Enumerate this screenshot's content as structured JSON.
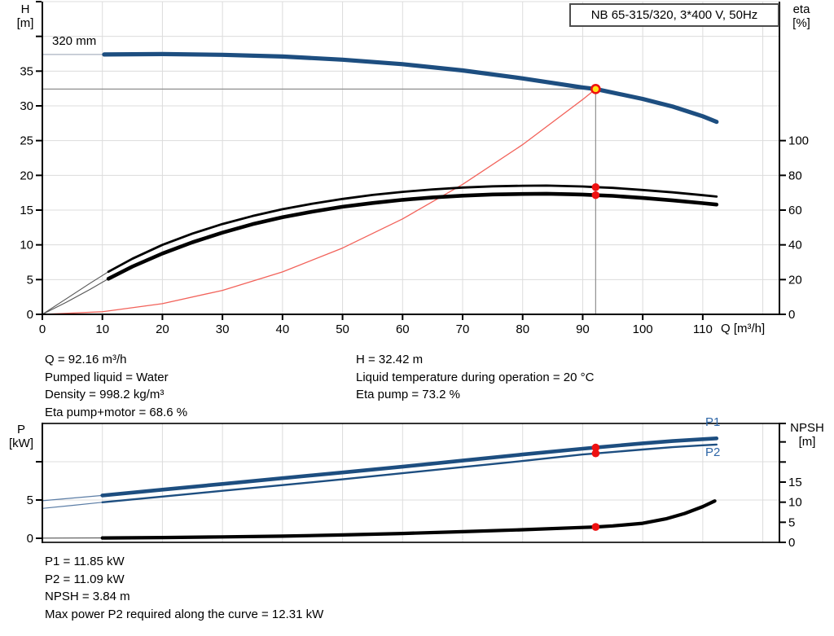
{
  "colors": {
    "curve_blue": "#1d4e80",
    "label_blue": "#2e66a7",
    "red": "#ee1111",
    "yellow": "#ffe215",
    "grid": "#dcdcdc",
    "crosshair": "#8f8f8f",
    "axis": "#000000",
    "system_red": "#f2625a",
    "lead_gray": "#555555",
    "lead_blue": "#5b7da6",
    "head_extension_gray": "#aab3c0"
  },
  "top_chart": {
    "title_box": "NB 65-315/320, 3*400 V, 50Hz",
    "y_left_title": "H",
    "y_left_unit": "[m]",
    "y_right_title": "eta",
    "y_right_unit": "[%]",
    "x_unit": "Q [m³/h]",
    "impeller": "320 mm"
  },
  "bottom_chart": {
    "y_left_title": "P",
    "y_left_unit": "[kW]",
    "y_right_title": "NPSH",
    "y_right_unit": "[m]",
    "p1_label": "P1",
    "p2_label": "P2"
  },
  "info_top_left": [
    "Q = 92.16 m³/h",
    "Pumped liquid = Water",
    "Density = 998.2 kg/m³",
    "Eta pump+motor = 68.6 %"
  ],
  "info_top_right": [
    "H = 32.42 m",
    "Liquid temperature during operation = 20 °C",
    "Eta pump = 73.2 %"
  ],
  "info_bottom": [
    "P1 = 11.85 kW",
    "P2 = 11.09 kW",
    "NPSH = 3.84 m",
    "Max power P2 required along the curve = 12.31 kW"
  ],
  "chart_data": [
    {
      "type": "line",
      "title": "NB 65-315/320, 3*400 V, 50Hz",
      "xlabel": "Q [m³/h]",
      "ylabel_left": "H [m]",
      "ylabel_right": "eta [%]",
      "xlim": [
        0,
        122.8
      ],
      "ylim_left": [
        0,
        45
      ],
      "ylim_right": [
        0,
        180
      ],
      "grid": true,
      "annotation": "320 mm",
      "x_ticks": [
        0,
        10,
        20,
        30,
        40,
        50,
        60,
        70,
        80,
        90,
        100,
        110
      ],
      "y_ticks_left": [
        0,
        5,
        10,
        15,
        20,
        25,
        30,
        35
      ],
      "y_tick_marks_left": [
        0,
        5,
        10,
        15,
        20,
        25,
        30,
        35,
        40,
        45
      ],
      "y_ticks_right": [
        0,
        20,
        40,
        60,
        80,
        100
      ],
      "grid_x": [
        10,
        20,
        30,
        40,
        50,
        60,
        70,
        80,
        90,
        100,
        110,
        120
      ],
      "grid_y_left": [
        5,
        10,
        15,
        20,
        25,
        30,
        35,
        40,
        45
      ],
      "duty_point": {
        "q": 92.16,
        "h": 32.42,
        "eta_pump": 73.2,
        "eta_pump_motor": 68.6
      },
      "markers": [
        {
          "q": 92.16,
          "v": 73.2,
          "axis": "eta",
          "style": "red"
        },
        {
          "q": 92.16,
          "v": 68.6,
          "axis": "eta",
          "style": "red"
        },
        {
          "q": 92.16,
          "v": 32.42,
          "axis": "h",
          "style": "duty"
        }
      ],
      "series": [
        {
          "name": "head-extension",
          "axis": "h",
          "color": "#aab3c0",
          "width": 1.3,
          "points": [
            [
              0,
              37.4
            ],
            [
              10.3,
              37.4
            ]
          ]
        },
        {
          "name": "system-curve",
          "axis": "h",
          "color": "#f2625a",
          "width": 1.3,
          "points": [
            [
              0,
              0
            ],
            [
              10,
              0.38
            ],
            [
              20,
              1.53
            ],
            [
              30,
              3.44
            ],
            [
              40,
              6.11
            ],
            [
              50,
              9.54
            ],
            [
              60,
              13.74
            ],
            [
              70,
              18.7
            ],
            [
              80,
              24.42
            ],
            [
              90,
              30.91
            ],
            [
              92.16,
              32.42
            ]
          ]
        },
        {
          "name": "eta-pump",
          "axis": "eta",
          "color": "#000000",
          "width": 2.8,
          "lead_color": "#555555",
          "lead_width": 1.1,
          "lead_points": [
            [
              0,
              0
            ],
            [
              4,
              9
            ],
            [
              8,
              18
            ],
            [
              11,
              24.5
            ]
          ],
          "points": [
            [
              11,
              24.5
            ],
            [
              15,
              32
            ],
            [
              20,
              40
            ],
            [
              25,
              46.5
            ],
            [
              30,
              52
            ],
            [
              35,
              56.6
            ],
            [
              40,
              60.5
            ],
            [
              45,
              63.7
            ],
            [
              50,
              66.4
            ],
            [
              55,
              68.7
            ],
            [
              60,
              70.5
            ],
            [
              65,
              71.9
            ],
            [
              70,
              73.0
            ],
            [
              75,
              73.7
            ],
            [
              80,
              74.0
            ],
            [
              84,
              74.1
            ],
            [
              88,
              73.8
            ],
            [
              90,
              73.6
            ],
            [
              92.16,
              73.2
            ],
            [
              95,
              72.8
            ],
            [
              100,
              71.6
            ],
            [
              105,
              70.2
            ],
            [
              110,
              68.6
            ],
            [
              112.3,
              67.8
            ]
          ]
        },
        {
          "name": "eta-pump-motor",
          "axis": "eta",
          "color": "#000000",
          "width": 4.6,
          "lead_color": "#555555",
          "lead_width": 1.1,
          "lead_points": [
            [
              0,
              0
            ],
            [
              4,
              7
            ],
            [
              8,
              14.5
            ],
            [
              11,
              20.5
            ]
          ],
          "points": [
            [
              11,
              20.5
            ],
            [
              15,
              27.5
            ],
            [
              20,
              35
            ],
            [
              25,
              41.5
            ],
            [
              30,
              47
            ],
            [
              35,
              51.9
            ],
            [
              40,
              55.9
            ],
            [
              45,
              59.1
            ],
            [
              50,
              61.9
            ],
            [
              55,
              64.1
            ],
            [
              60,
              65.9
            ],
            [
              65,
              67.3
            ],
            [
              70,
              68.3
            ],
            [
              75,
              69.0
            ],
            [
              80,
              69.3
            ],
            [
              84,
              69.4
            ],
            [
              88,
              69.1
            ],
            [
              90,
              68.95
            ],
            [
              92.16,
              68.6
            ],
            [
              95,
              68.2
            ],
            [
              100,
              67.0
            ],
            [
              105,
              65.6
            ],
            [
              110,
              64.0
            ],
            [
              112.3,
              63.2
            ]
          ]
        },
        {
          "name": "head",
          "axis": "h",
          "color": "#1d4e80",
          "width": 5.2,
          "points": [
            [
              10.3,
              37.4
            ],
            [
              20,
              37.45
            ],
            [
              30,
              37.35
            ],
            [
              40,
              37.1
            ],
            [
              50,
              36.65
            ],
            [
              60,
              36.0
            ],
            [
              70,
              35.1
            ],
            [
              80,
              33.95
            ],
            [
              90,
              32.65
            ],
            [
              92.16,
              32.42
            ],
            [
              100,
              31.0
            ],
            [
              105,
              29.9
            ],
            [
              110,
              28.5
            ],
            [
              112.3,
              27.7
            ]
          ]
        }
      ]
    },
    {
      "type": "line",
      "title": "",
      "xlabel": "",
      "ylabel_left": "P [kW]",
      "ylabel_right": "NPSH [m]",
      "xlim": [
        0,
        122.8
      ],
      "ylim_left": [
        0,
        15.4
      ],
      "ylim_right": [
        0,
        29.6
      ],
      "grid": true,
      "y_ticks_left": [
        0,
        5,
        10
      ],
      "y_tick_labels_left": [
        "0",
        "5",
        ""
      ],
      "y_ticks_right": [
        0,
        5,
        10,
        15,
        20,
        25,
        30
      ],
      "y_tick_labels_right": [
        "0",
        "5",
        "10",
        "15",
        "",
        "",
        ""
      ],
      "grid_x": [
        10,
        20,
        30,
        40,
        50,
        60,
        70,
        80,
        90,
        100,
        110,
        120
      ],
      "grid_y_left": [
        5,
        10
      ],
      "duty_point": {
        "q": 92.16,
        "p1": 11.85,
        "p2": 11.09,
        "npsh": 3.84
      },
      "markers": [
        {
          "q": 92.16,
          "v": 11.85,
          "axis": "p",
          "style": "red"
        },
        {
          "q": 92.16,
          "v": 11.09,
          "axis": "p",
          "style": "red"
        },
        {
          "q": 92.16,
          "v": 3.84,
          "axis": "npsh",
          "style": "red"
        }
      ],
      "series": [
        {
          "name": "npsh",
          "axis": "npsh",
          "color": "#000000",
          "width": 4.2,
          "lead_color": "#555555",
          "lead_width": 1.1,
          "lead_points": [
            [
              0,
              1.05
            ],
            [
              5,
              1.07
            ],
            [
              10,
              1.1
            ]
          ],
          "points": [
            [
              10,
              1.1
            ],
            [
              20,
              1.2
            ],
            [
              30,
              1.35
            ],
            [
              40,
              1.55
            ],
            [
              50,
              1.85
            ],
            [
              60,
              2.2
            ],
            [
              70,
              2.65
            ],
            [
              80,
              3.15
            ],
            [
              90,
              3.7
            ],
            [
              92.16,
              3.84
            ],
            [
              95,
              4.1
            ],
            [
              100,
              4.75
            ],
            [
              104,
              5.9
            ],
            [
              107,
              7.2
            ],
            [
              110,
              8.9
            ],
            [
              112,
              10.3
            ]
          ]
        },
        {
          "name": "p2",
          "axis": "p",
          "color": "#1d4e80",
          "width": 2.4,
          "lead_color": "#5b7da6",
          "lead_width": 1.2,
          "lead_points": [
            [
              0,
              3.9
            ],
            [
              5,
              4.3
            ],
            [
              10,
              4.7
            ]
          ],
          "points": [
            [
              10,
              4.7
            ],
            [
              20,
              5.45
            ],
            [
              30,
              6.2
            ],
            [
              40,
              6.95
            ],
            [
              50,
              7.7
            ],
            [
              60,
              8.5
            ],
            [
              70,
              9.3
            ],
            [
              80,
              10.1
            ],
            [
              90,
              10.95
            ],
            [
              92.16,
              11.09
            ],
            [
              100,
              11.6
            ],
            [
              105,
              11.9
            ],
            [
              110,
              12.15
            ],
            [
              112.3,
              12.25
            ]
          ]
        },
        {
          "name": "p1",
          "axis": "p",
          "color": "#1d4e80",
          "width": 4.6,
          "lead_color": "#5b7da6",
          "lead_width": 1.2,
          "lead_points": [
            [
              0,
              4.9
            ],
            [
              5,
              5.25
            ],
            [
              10,
              5.6
            ]
          ],
          "points": [
            [
              10,
              5.6
            ],
            [
              20,
              6.35
            ],
            [
              30,
              7.1
            ],
            [
              40,
              7.85
            ],
            [
              50,
              8.6
            ],
            [
              60,
              9.35
            ],
            [
              70,
              10.15
            ],
            [
              80,
              10.95
            ],
            [
              90,
              11.7
            ],
            [
              92.16,
              11.85
            ],
            [
              100,
              12.4
            ],
            [
              105,
              12.7
            ],
            [
              110,
              12.95
            ],
            [
              112.3,
              13.05
            ]
          ]
        }
      ]
    }
  ]
}
